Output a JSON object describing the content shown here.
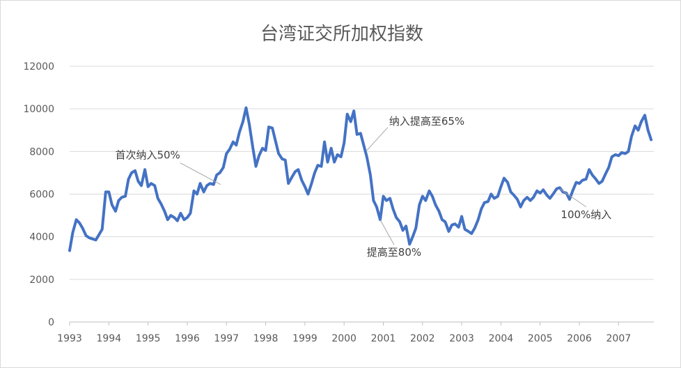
{
  "chart_data": {
    "type": "line",
    "title": "台湾证交所加权指数",
    "xlabel": "",
    "ylabel": "",
    "ylim": [
      0,
      12000
    ],
    "xlim": [
      1993,
      2007.9
    ],
    "grid": true,
    "yticks": [
      "0",
      "2000",
      "4000",
      "6000",
      "8000",
      "10000",
      "12000"
    ],
    "xticks": [
      "1993",
      "1994",
      "1995",
      "1996",
      "1997",
      "1998",
      "1999",
      "2000",
      "2001",
      "2002",
      "2003",
      "2004",
      "2005",
      "2006",
      "2007"
    ],
    "line_color": "#4472c4",
    "series": [
      {
        "name": "",
        "points": [
          [
            1993.0,
            3350
          ],
          [
            1993.08,
            4200
          ],
          [
            1993.17,
            4800
          ],
          [
            1993.25,
            4650
          ],
          [
            1993.33,
            4400
          ],
          [
            1993.42,
            4050
          ],
          [
            1993.5,
            3950
          ],
          [
            1993.58,
            3900
          ],
          [
            1993.67,
            3850
          ],
          [
            1993.75,
            4100
          ],
          [
            1993.83,
            4350
          ],
          [
            1993.92,
            6100
          ],
          [
            1994.0,
            6100
          ],
          [
            1994.08,
            5500
          ],
          [
            1994.17,
            5200
          ],
          [
            1994.25,
            5700
          ],
          [
            1994.33,
            5850
          ],
          [
            1994.42,
            5900
          ],
          [
            1994.5,
            6700
          ],
          [
            1994.58,
            7000
          ],
          [
            1994.67,
            7100
          ],
          [
            1994.75,
            6600
          ],
          [
            1994.83,
            6400
          ],
          [
            1994.92,
            7150
          ],
          [
            1995.0,
            6350
          ],
          [
            1995.08,
            6500
          ],
          [
            1995.17,
            6400
          ],
          [
            1995.25,
            5800
          ],
          [
            1995.33,
            5550
          ],
          [
            1995.42,
            5200
          ],
          [
            1995.5,
            4800
          ],
          [
            1995.58,
            5000
          ],
          [
            1995.67,
            4900
          ],
          [
            1995.75,
            4750
          ],
          [
            1995.83,
            5100
          ],
          [
            1995.92,
            4800
          ],
          [
            1996.0,
            4900
          ],
          [
            1996.08,
            5100
          ],
          [
            1996.17,
            6150
          ],
          [
            1996.25,
            6000
          ],
          [
            1996.33,
            6500
          ],
          [
            1996.42,
            6100
          ],
          [
            1996.5,
            6400
          ],
          [
            1996.58,
            6500
          ],
          [
            1996.67,
            6450
          ],
          [
            1996.75,
            6900
          ],
          [
            1996.83,
            7000
          ],
          [
            1996.92,
            7250
          ],
          [
            1997.0,
            7900
          ],
          [
            1997.08,
            8100
          ],
          [
            1997.17,
            8450
          ],
          [
            1997.25,
            8300
          ],
          [
            1997.33,
            8900
          ],
          [
            1997.42,
            9400
          ],
          [
            1997.5,
            10050
          ],
          [
            1997.58,
            9300
          ],
          [
            1997.67,
            8200
          ],
          [
            1997.75,
            7300
          ],
          [
            1997.83,
            7800
          ],
          [
            1997.92,
            8150
          ],
          [
            1998.0,
            8050
          ],
          [
            1998.08,
            9150
          ],
          [
            1998.17,
            9100
          ],
          [
            1998.25,
            8500
          ],
          [
            1998.33,
            7900
          ],
          [
            1998.42,
            7650
          ],
          [
            1998.5,
            7600
          ],
          [
            1998.58,
            6500
          ],
          [
            1998.67,
            6800
          ],
          [
            1998.75,
            7050
          ],
          [
            1998.83,
            7150
          ],
          [
            1998.92,
            6650
          ],
          [
            1999.0,
            6350
          ],
          [
            1999.08,
            6000
          ],
          [
            1999.17,
            6500
          ],
          [
            1999.25,
            7000
          ],
          [
            1999.33,
            7350
          ],
          [
            1999.42,
            7300
          ],
          [
            1999.5,
            8450
          ],
          [
            1999.58,
            7500
          ],
          [
            1999.67,
            8150
          ],
          [
            1999.75,
            7500
          ],
          [
            1999.83,
            7850
          ],
          [
            1999.92,
            7750
          ],
          [
            2000.0,
            8400
          ],
          [
            2000.08,
            9750
          ],
          [
            2000.17,
            9400
          ],
          [
            2000.25,
            9900
          ],
          [
            2000.33,
            8800
          ],
          [
            2000.42,
            8850
          ],
          [
            2000.5,
            8300
          ],
          [
            2000.58,
            7750
          ],
          [
            2000.67,
            6900
          ],
          [
            2000.75,
            5700
          ],
          [
            2000.83,
            5400
          ],
          [
            2000.92,
            4800
          ],
          [
            2001.0,
            5900
          ],
          [
            2001.08,
            5700
          ],
          [
            2001.17,
            5800
          ],
          [
            2001.25,
            5300
          ],
          [
            2001.33,
            4900
          ],
          [
            2001.42,
            4700
          ],
          [
            2001.5,
            4300
          ],
          [
            2001.58,
            4500
          ],
          [
            2001.67,
            3650
          ],
          [
            2001.75,
            4000
          ],
          [
            2001.83,
            4400
          ],
          [
            2001.92,
            5500
          ],
          [
            2002.0,
            5900
          ],
          [
            2002.08,
            5700
          ],
          [
            2002.17,
            6150
          ],
          [
            2002.25,
            5900
          ],
          [
            2002.33,
            5500
          ],
          [
            2002.42,
            5200
          ],
          [
            2002.5,
            4800
          ],
          [
            2002.58,
            4700
          ],
          [
            2002.67,
            4250
          ],
          [
            2002.75,
            4550
          ],
          [
            2002.83,
            4600
          ],
          [
            2002.92,
            4450
          ],
          [
            2003.0,
            4950
          ],
          [
            2003.08,
            4350
          ],
          [
            2003.17,
            4250
          ],
          [
            2003.25,
            4150
          ],
          [
            2003.33,
            4400
          ],
          [
            2003.42,
            4800
          ],
          [
            2003.5,
            5300
          ],
          [
            2003.58,
            5600
          ],
          [
            2003.67,
            5650
          ],
          [
            2003.75,
            6000
          ],
          [
            2003.83,
            5800
          ],
          [
            2003.92,
            5900
          ],
          [
            2004.0,
            6350
          ],
          [
            2004.08,
            6750
          ],
          [
            2004.17,
            6550
          ],
          [
            2004.25,
            6100
          ],
          [
            2004.33,
            5950
          ],
          [
            2004.42,
            5750
          ],
          [
            2004.5,
            5400
          ],
          [
            2004.58,
            5700
          ],
          [
            2004.67,
            5850
          ],
          [
            2004.75,
            5700
          ],
          [
            2004.83,
            5850
          ],
          [
            2004.92,
            6150
          ],
          [
            2005.0,
            6050
          ],
          [
            2005.08,
            6200
          ],
          [
            2005.17,
            5950
          ],
          [
            2005.25,
            5800
          ],
          [
            2005.33,
            6000
          ],
          [
            2005.42,
            6250
          ],
          [
            2005.5,
            6300
          ],
          [
            2005.58,
            6100
          ],
          [
            2005.67,
            6050
          ],
          [
            2005.75,
            5750
          ],
          [
            2005.83,
            6150
          ],
          [
            2005.92,
            6550
          ],
          [
            2006.0,
            6500
          ],
          [
            2006.08,
            6650
          ],
          [
            2006.17,
            6700
          ],
          [
            2006.25,
            7150
          ],
          [
            2006.33,
            6900
          ],
          [
            2006.42,
            6700
          ],
          [
            2006.5,
            6500
          ],
          [
            2006.58,
            6600
          ],
          [
            2006.67,
            6950
          ],
          [
            2006.75,
            7250
          ],
          [
            2006.83,
            7750
          ],
          [
            2006.92,
            7850
          ],
          [
            2007.0,
            7800
          ],
          [
            2007.08,
            7950
          ],
          [
            2007.17,
            7900
          ],
          [
            2007.25,
            8000
          ],
          [
            2007.33,
            8700
          ],
          [
            2007.42,
            9200
          ],
          [
            2007.5,
            9000
          ],
          [
            2007.58,
            9400
          ],
          [
            2007.67,
            9700
          ],
          [
            2007.75,
            9000
          ],
          [
            2007.83,
            8550
          ]
        ]
      }
    ],
    "annotations": [
      {
        "text": "首次纳入50%",
        "x": 1996.85,
        "y": 6450
      },
      {
        "text": "纳入提高至65%",
        "x": 2000.58,
        "y": 8050
      },
      {
        "text": "提高至80%",
        "x": 2000.92,
        "y": 4800
      },
      {
        "text": "100%纳入",
        "x": 2005.5,
        "y": 6250
      }
    ]
  }
}
